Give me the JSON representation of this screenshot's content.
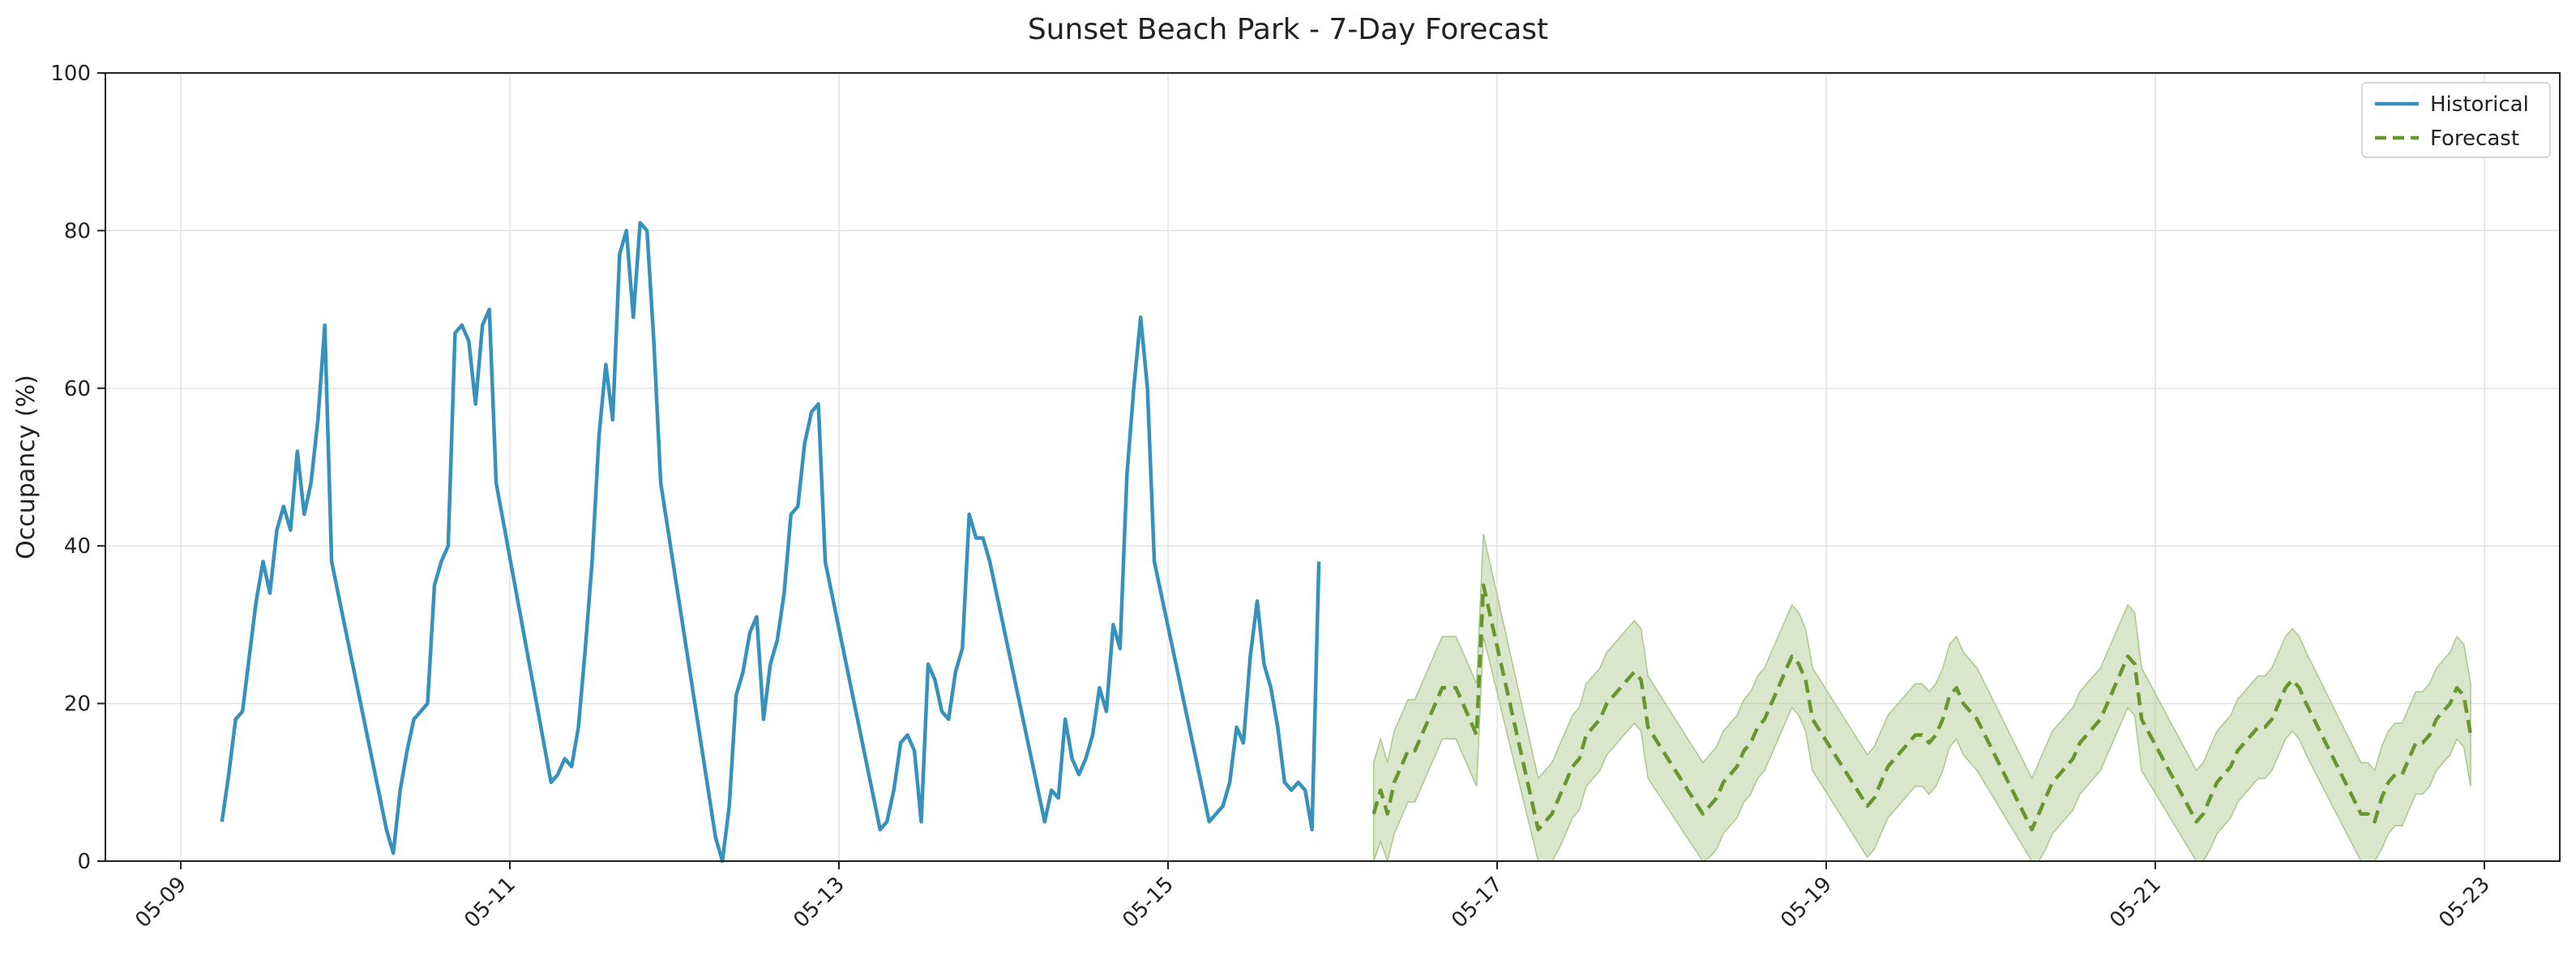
{
  "chart_data": {
    "type": "line",
    "title": "Sunset Beach Park - 7-Day Forecast",
    "xlabel": "",
    "ylabel": "Occupancy (%)",
    "ylim": [
      0,
      100
    ],
    "xlim": [
      "05-08T13:00",
      "05-23T11:00"
    ],
    "x_ticks": [
      "05-09",
      "05-11",
      "05-13",
      "05-15",
      "05-17",
      "05-19",
      "05-21",
      "05-23"
    ],
    "y_ticks": [
      0,
      20,
      40,
      60,
      80,
      100
    ],
    "grid": true,
    "legend_position": "top-right",
    "colors": {
      "historical": "#3691bd",
      "forecast": "#66962e",
      "band": "#aac88c"
    },
    "series": [
      {
        "name": "Historical",
        "style": "solid",
        "points": [
          [
            "05-09T06:00",
            5
          ],
          [
            "05-09T07:00",
            11
          ],
          [
            "05-09T08:00",
            18
          ],
          [
            "05-09T09:00",
            19
          ],
          [
            "05-09T10:00",
            26
          ],
          [
            "05-09T11:00",
            33
          ],
          [
            "05-09T12:00",
            38
          ],
          [
            "05-09T13:00",
            34
          ],
          [
            "05-09T14:00",
            42
          ],
          [
            "05-09T15:00",
            45
          ],
          [
            "05-09T16:00",
            42
          ],
          [
            "05-09T17:00",
            52
          ],
          [
            "05-09T18:00",
            44
          ],
          [
            "05-09T19:00",
            48
          ],
          [
            "05-09T20:00",
            56
          ],
          [
            "05-09T21:00",
            68
          ],
          [
            "05-09T22:00",
            38
          ],
          [
            "05-10T06:00",
            4
          ],
          [
            "05-10T07:00",
            1
          ],
          [
            "05-10T08:00",
            9
          ],
          [
            "05-10T09:00",
            14
          ],
          [
            "05-10T10:00",
            18
          ],
          [
            "05-10T11:00",
            19
          ],
          [
            "05-10T12:00",
            20
          ],
          [
            "05-10T13:00",
            35
          ],
          [
            "05-10T14:00",
            38
          ],
          [
            "05-10T15:00",
            40
          ],
          [
            "05-10T16:00",
            67
          ],
          [
            "05-10T17:00",
            68
          ],
          [
            "05-10T18:00",
            66
          ],
          [
            "05-10T19:00",
            58
          ],
          [
            "05-10T20:00",
            68
          ],
          [
            "05-10T21:00",
            70
          ],
          [
            "05-10T22:00",
            48
          ],
          [
            "05-11T06:00",
            10
          ],
          [
            "05-11T07:00",
            11
          ],
          [
            "05-11T08:00",
            13
          ],
          [
            "05-11T09:00",
            12
          ],
          [
            "05-11T10:00",
            17
          ],
          [
            "05-11T11:00",
            27
          ],
          [
            "05-11T12:00",
            38
          ],
          [
            "05-11T13:00",
            54
          ],
          [
            "05-11T14:00",
            63
          ],
          [
            "05-11T15:00",
            56
          ],
          [
            "05-11T16:00",
            77
          ],
          [
            "05-11T17:00",
            80
          ],
          [
            "05-11T18:00",
            69
          ],
          [
            "05-11T19:00",
            81
          ],
          [
            "05-11T20:00",
            80
          ],
          [
            "05-11T21:00",
            66
          ],
          [
            "05-11T22:00",
            48
          ],
          [
            "05-12T06:00",
            3
          ],
          [
            "05-12T07:00",
            0
          ],
          [
            "05-12T08:00",
            7
          ],
          [
            "05-12T09:00",
            21
          ],
          [
            "05-12T10:00",
            24
          ],
          [
            "05-12T11:00",
            29
          ],
          [
            "05-12T12:00",
            31
          ],
          [
            "05-12T13:00",
            18
          ],
          [
            "05-12T14:00",
            25
          ],
          [
            "05-12T15:00",
            28
          ],
          [
            "05-12T16:00",
            34
          ],
          [
            "05-12T17:00",
            44
          ],
          [
            "05-12T18:00",
            45
          ],
          [
            "05-12T19:00",
            53
          ],
          [
            "05-12T20:00",
            57
          ],
          [
            "05-12T21:00",
            58
          ],
          [
            "05-12T22:00",
            38
          ],
          [
            "05-13T06:00",
            4
          ],
          [
            "05-13T07:00",
            5
          ],
          [
            "05-13T08:00",
            9
          ],
          [
            "05-13T09:00",
            15
          ],
          [
            "05-13T10:00",
            16
          ],
          [
            "05-13T11:00",
            14
          ],
          [
            "05-13T12:00",
            5
          ],
          [
            "05-13T13:00",
            25
          ],
          [
            "05-13T14:00",
            23
          ],
          [
            "05-13T15:00",
            19
          ],
          [
            "05-13T16:00",
            18
          ],
          [
            "05-13T17:00",
            24
          ],
          [
            "05-13T18:00",
            27
          ],
          [
            "05-13T19:00",
            44
          ],
          [
            "05-13T20:00",
            41
          ],
          [
            "05-13T21:00",
            41
          ],
          [
            "05-13T22:00",
            38
          ],
          [
            "05-14T06:00",
            5
          ],
          [
            "05-14T07:00",
            9
          ],
          [
            "05-14T08:00",
            8
          ],
          [
            "05-14T09:00",
            18
          ],
          [
            "05-14T10:00",
            13
          ],
          [
            "05-14T11:00",
            11
          ],
          [
            "05-14T12:00",
            13
          ],
          [
            "05-14T13:00",
            16
          ],
          [
            "05-14T14:00",
            22
          ],
          [
            "05-14T15:00",
            19
          ],
          [
            "05-14T16:00",
            30
          ],
          [
            "05-14T17:00",
            27
          ],
          [
            "05-14T18:00",
            49
          ],
          [
            "05-14T19:00",
            60
          ],
          [
            "05-14T20:00",
            69
          ],
          [
            "05-14T21:00",
            60
          ],
          [
            "05-14T22:00",
            38
          ],
          [
            "05-15T06:00",
            5
          ],
          [
            "05-15T07:00",
            6
          ],
          [
            "05-15T08:00",
            7
          ],
          [
            "05-15T09:00",
            10
          ],
          [
            "05-15T10:00",
            17
          ],
          [
            "05-15T11:00",
            15
          ],
          [
            "05-15T12:00",
            26
          ],
          [
            "05-15T13:00",
            33
          ],
          [
            "05-15T14:00",
            25
          ],
          [
            "05-15T15:00",
            22
          ],
          [
            "05-15T16:00",
            17
          ],
          [
            "05-15T17:00",
            10
          ],
          [
            "05-15T18:00",
            9
          ],
          [
            "05-15T19:00",
            10
          ],
          [
            "05-15T20:00",
            9
          ],
          [
            "05-15T21:00",
            4
          ],
          [
            "05-15T22:00",
            38
          ]
        ]
      },
      {
        "name": "Forecast",
        "style": "dashed",
        "points": [
          [
            "05-16T06:00",
            6
          ],
          [
            "05-16T07:00",
            9
          ],
          [
            "05-16T08:00",
            6
          ],
          [
            "05-16T09:00",
            10
          ],
          [
            "05-16T10:00",
            12
          ],
          [
            "05-16T11:00",
            14
          ],
          [
            "05-16T12:00",
            14
          ],
          [
            "05-16T13:00",
            16
          ],
          [
            "05-16T14:00",
            18
          ],
          [
            "05-16T15:00",
            20
          ],
          [
            "05-16T16:00",
            22
          ],
          [
            "05-16T17:00",
            22
          ],
          [
            "05-16T18:00",
            22
          ],
          [
            "05-16T19:00",
            20
          ],
          [
            "05-16T20:00",
            18
          ],
          [
            "05-16T21:00",
            16
          ],
          [
            "05-16T22:00",
            35
          ],
          [
            "05-17T06:00",
            4
          ],
          [
            "05-17T07:00",
            5
          ],
          [
            "05-17T08:00",
            6
          ],
          [
            "05-17T09:00",
            8
          ],
          [
            "05-17T10:00",
            10
          ],
          [
            "05-17T11:00",
            12
          ],
          [
            "05-17T12:00",
            13
          ],
          [
            "05-17T13:00",
            16
          ],
          [
            "05-17T14:00",
            17
          ],
          [
            "05-17T15:00",
            18
          ],
          [
            "05-17T16:00",
            20
          ],
          [
            "05-17T17:00",
            21
          ],
          [
            "05-17T18:00",
            22
          ],
          [
            "05-17T19:00",
            23
          ],
          [
            "05-17T20:00",
            24
          ],
          [
            "05-17T21:00",
            23
          ],
          [
            "05-17T22:00",
            17
          ],
          [
            "05-18T06:00",
            6
          ],
          [
            "05-18T07:00",
            7
          ],
          [
            "05-18T08:00",
            8
          ],
          [
            "05-18T09:00",
            10
          ],
          [
            "05-18T10:00",
            11
          ],
          [
            "05-18T11:00",
            12
          ],
          [
            "05-18T12:00",
            14
          ],
          [
            "05-18T13:00",
            15
          ],
          [
            "05-18T14:00",
            17
          ],
          [
            "05-18T15:00",
            18
          ],
          [
            "05-18T16:00",
            20
          ],
          [
            "05-18T17:00",
            22
          ],
          [
            "05-18T18:00",
            24
          ],
          [
            "05-18T19:00",
            26
          ],
          [
            "05-18T20:00",
            25
          ],
          [
            "05-18T21:00",
            23
          ],
          [
            "05-18T22:00",
            18
          ],
          [
            "05-19T06:00",
            7
          ],
          [
            "05-19T07:00",
            8
          ],
          [
            "05-19T08:00",
            10
          ],
          [
            "05-19T09:00",
            12
          ],
          [
            "05-19T10:00",
            13
          ],
          [
            "05-19T11:00",
            14
          ],
          [
            "05-19T12:00",
            15
          ],
          [
            "05-19T13:00",
            16
          ],
          [
            "05-19T14:00",
            16
          ],
          [
            "05-19T15:00",
            15
          ],
          [
            "05-19T16:00",
            16
          ],
          [
            "05-19T17:00",
            18
          ],
          [
            "05-19T18:00",
            21
          ],
          [
            "05-19T19:00",
            22
          ],
          [
            "05-19T20:00",
            20
          ],
          [
            "05-19T21:00",
            19
          ],
          [
            "05-19T22:00",
            18
          ],
          [
            "05-20T06:00",
            4
          ],
          [
            "05-20T07:00",
            6
          ],
          [
            "05-20T08:00",
            8
          ],
          [
            "05-20T09:00",
            10
          ],
          [
            "05-20T10:00",
            11
          ],
          [
            "05-20T11:00",
            12
          ],
          [
            "05-20T12:00",
            13
          ],
          [
            "05-20T13:00",
            15
          ],
          [
            "05-20T14:00",
            16
          ],
          [
            "05-20T15:00",
            17
          ],
          [
            "05-20T16:00",
            18
          ],
          [
            "05-20T17:00",
            20
          ],
          [
            "05-20T18:00",
            22
          ],
          [
            "05-20T19:00",
            24
          ],
          [
            "05-20T20:00",
            26
          ],
          [
            "05-20T21:00",
            25
          ],
          [
            "05-20T22:00",
            18
          ],
          [
            "05-21T06:00",
            5
          ],
          [
            "05-21T07:00",
            6
          ],
          [
            "05-21T08:00",
            8
          ],
          [
            "05-21T09:00",
            10
          ],
          [
            "05-21T10:00",
            11
          ],
          [
            "05-21T11:00",
            12
          ],
          [
            "05-21T12:00",
            14
          ],
          [
            "05-21T13:00",
            15
          ],
          [
            "05-21T14:00",
            16
          ],
          [
            "05-21T15:00",
            17
          ],
          [
            "05-21T16:00",
            17
          ],
          [
            "05-21T17:00",
            18
          ],
          [
            "05-21T18:00",
            20
          ],
          [
            "05-21T19:00",
            22
          ],
          [
            "05-21T20:00",
            23
          ],
          [
            "05-21T21:00",
            22
          ],
          [
            "05-21T22:00",
            20
          ],
          [
            "05-22T06:00",
            6
          ],
          [
            "05-22T07:00",
            6
          ],
          [
            "05-22T08:00",
            5
          ],
          [
            "05-22T09:00",
            8
          ],
          [
            "05-22T10:00",
            10
          ],
          [
            "05-22T11:00",
            11
          ],
          [
            "05-22T12:00",
            11
          ],
          [
            "05-22T13:00",
            13
          ],
          [
            "05-22T14:00",
            15
          ],
          [
            "05-22T15:00",
            15
          ],
          [
            "05-22T16:00",
            16
          ],
          [
            "05-22T17:00",
            18
          ],
          [
            "05-22T18:00",
            19
          ],
          [
            "05-22T19:00",
            20
          ],
          [
            "05-22T20:00",
            22
          ],
          [
            "05-22T21:00",
            21
          ],
          [
            "05-22T22:00",
            16
          ]
        ]
      }
    ],
    "forecast_band_halfwidth": 6.5
  }
}
